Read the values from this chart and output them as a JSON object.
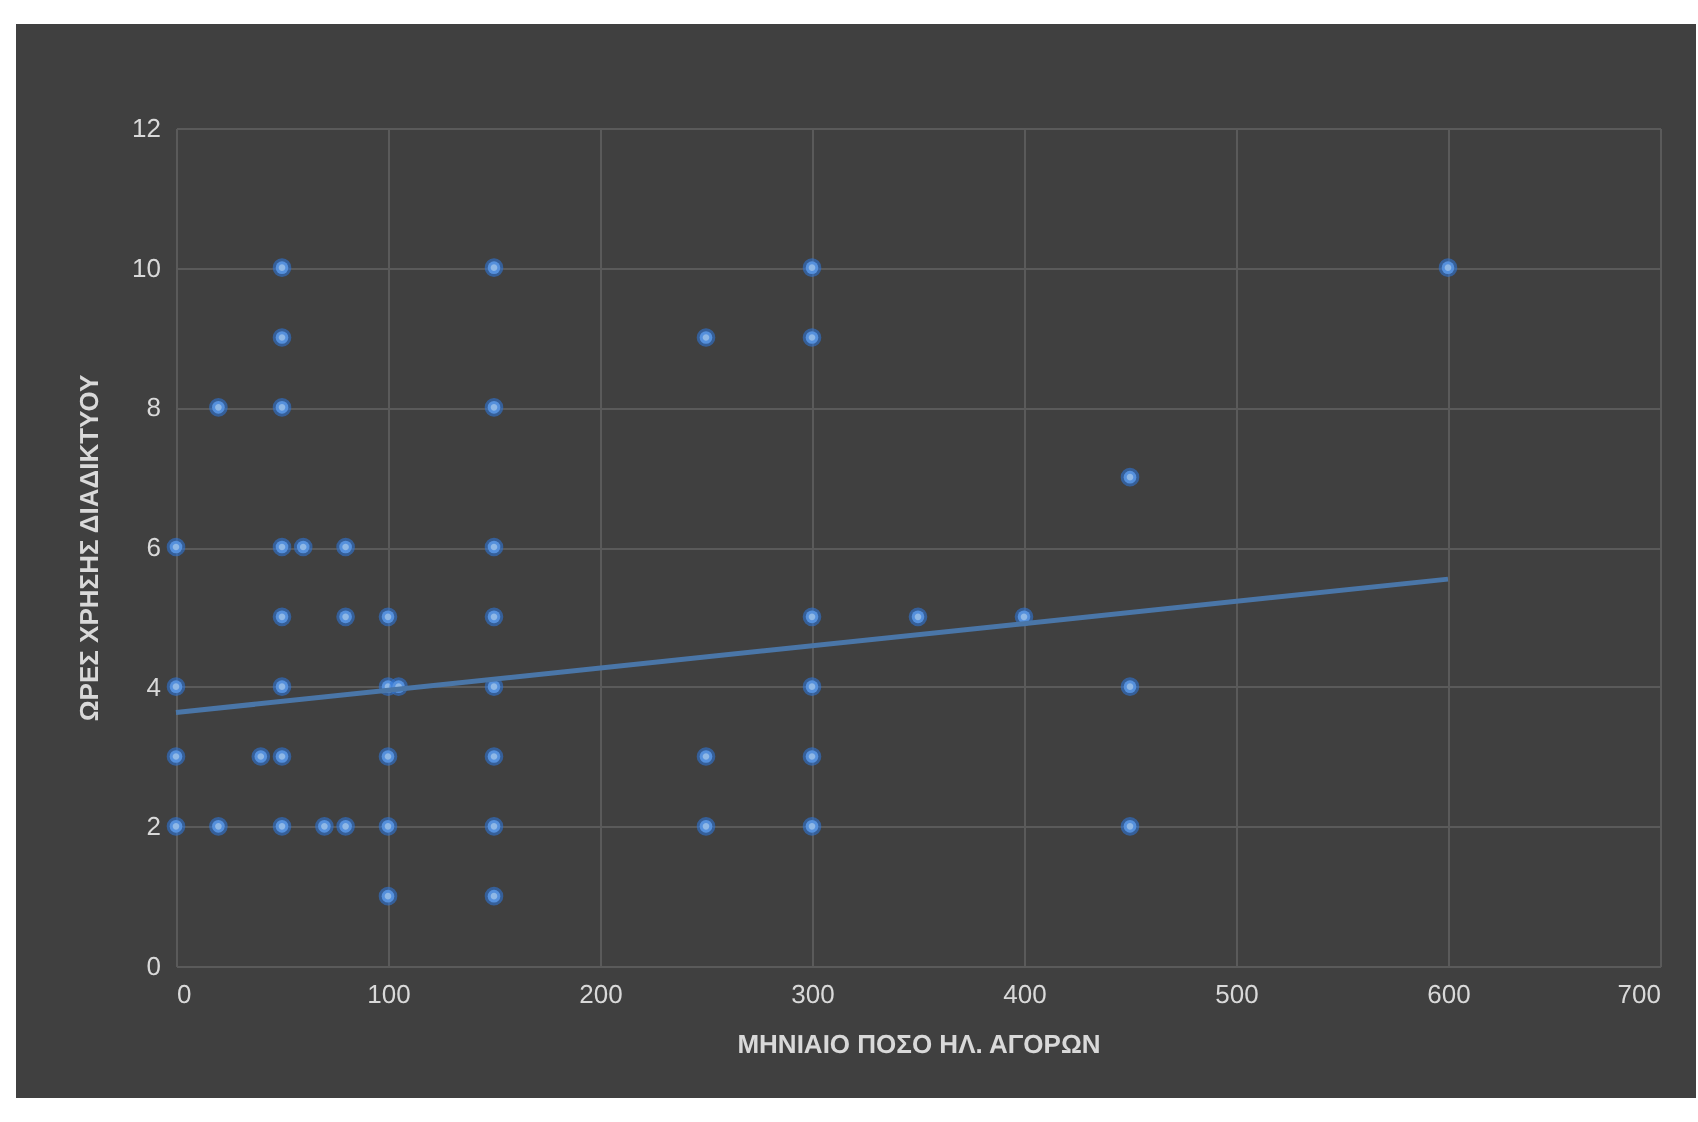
{
  "chart_data": {
    "type": "scatter",
    "xlabel": "ΜΗΝΙΑΙΟ ΠΟΣΟ  ΗΛ. ΑΓΟΡΩΝ",
    "ylabel": "ΩΡΕΣ ΧΡΗΣΗΣ ΔΙΑΔΙΚΤΥΟΥ",
    "xlim": [
      0,
      700
    ],
    "xticks": [
      0,
      100,
      200,
      300,
      400,
      500,
      600,
      700
    ],
    "ylim": [
      0,
      12
    ],
    "yticks": [
      0,
      2,
      4,
      6,
      8,
      10,
      12
    ],
    "grid": true,
    "series": [
      {
        "color": "#8fb8e6",
        "marker": "circle",
        "x": [
          0,
          0,
          0,
          0,
          20,
          20,
          40,
          50,
          50,
          50,
          50,
          50,
          50,
          50,
          50,
          60,
          70,
          80,
          80,
          80,
          100,
          100,
          100,
          100,
          100,
          105,
          150,
          150,
          150,
          150,
          150,
          150,
          150,
          150,
          250,
          250,
          250,
          300,
          300,
          300,
          300,
          300,
          300,
          350,
          400,
          450,
          450,
          450,
          600
        ],
        "values": [
          6,
          4,
          3,
          2,
          8,
          2,
          3,
          10,
          9,
          8,
          6,
          5,
          4,
          3,
          2,
          6,
          2,
          6,
          5,
          2,
          5,
          4,
          3,
          2,
          1,
          4,
          10,
          8,
          6,
          5,
          4,
          3,
          2,
          1,
          9,
          3,
          2,
          10,
          9,
          5,
          4,
          3,
          2,
          5,
          5,
          7,
          4,
          2,
          10
        ]
      },
      {
        "type": "line",
        "color": "#4a76a8",
        "x": [
          0,
          600
        ],
        "values": [
          3.63,
          5.54
        ]
      }
    ]
  }
}
